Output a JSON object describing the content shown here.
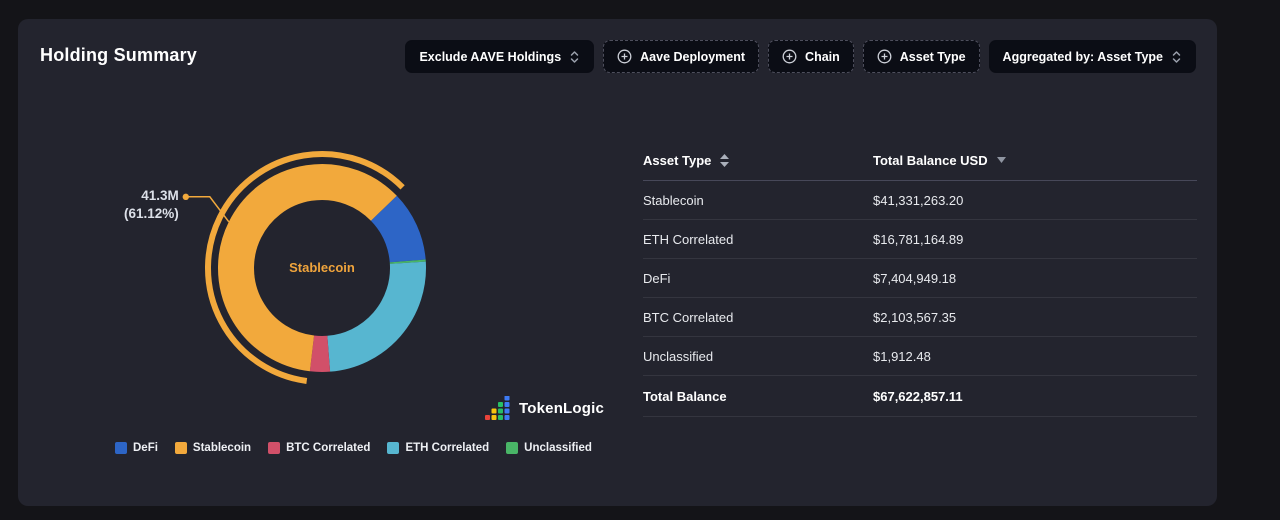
{
  "header": {
    "title": "Holding Summary",
    "controls": [
      {
        "label": "Exclude AAVE Holdings",
        "type": "dropdown"
      },
      {
        "label": "Aave Deployment",
        "type": "add-filter"
      },
      {
        "label": "Chain",
        "type": "add-filter"
      },
      {
        "label": "Asset Type",
        "type": "add-filter"
      },
      {
        "label": "Aggregated by: Asset Type",
        "type": "dropdown"
      }
    ]
  },
  "chart_data": {
    "type": "donut",
    "title": "Holding Summary by Asset Type",
    "unit": "USD",
    "start_angle": 46,
    "segments": [
      {
        "name": "DeFi",
        "value": 7404949.18,
        "percent": 10.95,
        "color": "#2d65c6"
      },
      {
        "name": "Unclassified",
        "value": 1912.48,
        "percent": 0.0,
        "color": "#49b567"
      },
      {
        "name": "ETH Correlated",
        "value": 16781164.89,
        "percent": 24.82,
        "color": "#57b6d0"
      },
      {
        "name": "BTC Correlated",
        "value": 2103567.35,
        "percent": 3.11,
        "color": "#d15069"
      },
      {
        "name": "Stablecoin",
        "value": 41331263.2,
        "percent": 61.12,
        "color": "#f2a93c"
      }
    ],
    "legend_order": [
      "DeFi",
      "Stablecoin",
      "BTC Correlated",
      "ETH Correlated",
      "Unclassified"
    ],
    "selected": {
      "name": "Stablecoin",
      "value_label": "41.3M",
      "percent_label": "(61.12%)"
    }
  },
  "table": {
    "columns": [
      {
        "label": "Asset Type",
        "sort": "both"
      },
      {
        "label": "Total Balance USD",
        "sort": "desc"
      }
    ],
    "rows": [
      [
        "Stablecoin",
        "$41,331,263.20"
      ],
      [
        "ETH Correlated",
        "$16,781,164.89"
      ],
      [
        "DeFi",
        "$7,404,949.18"
      ],
      [
        "BTC Correlated",
        "$2,103,567.35"
      ],
      [
        "Unclassified",
        "$1,912.48"
      ]
    ],
    "footer": [
      "Total Balance",
      "$67,622,857.11"
    ]
  },
  "branding": {
    "logo_text": "TokenLogic"
  },
  "colors": {
    "card_bg": "#23242e",
    "page_bg": "#141418",
    "accent_orange": "#f2a93c",
    "label_text": "#dce0e8"
  }
}
